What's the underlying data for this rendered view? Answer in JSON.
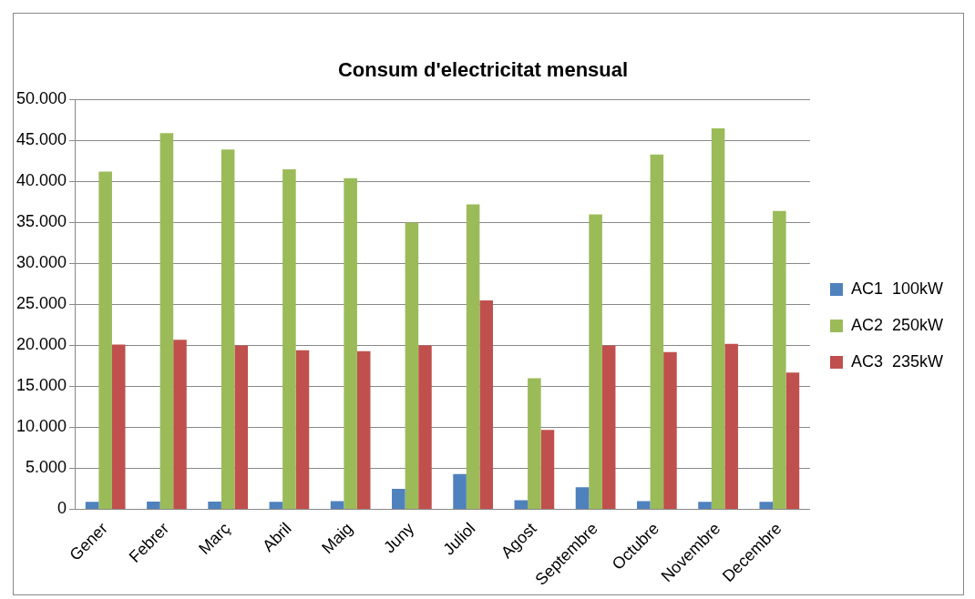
{
  "chart_data": {
    "type": "bar",
    "title": "Consum d'electricitat mensual",
    "categories": [
      "Gener",
      "Febrer",
      "Març",
      "Abril",
      "Maig",
      "Juny",
      "Juliol",
      "Agost",
      "Septembre",
      "Octubre",
      "Novembre",
      "Decembre"
    ],
    "series": [
      {
        "name": "AC1  100kW",
        "color": "#4f81bd",
        "values": [
          900,
          950,
          950,
          900,
          1000,
          2500,
          4300,
          1100,
          2700,
          1000,
          900,
          900
        ]
      },
      {
        "name": "AC2  250kW",
        "color": "#9bbb59",
        "values": [
          41200,
          45900,
          43900,
          41500,
          40400,
          35000,
          37200,
          16000,
          36000,
          43300,
          46500,
          36400
        ]
      },
      {
        "name": "AC3  235kW",
        "color": "#c0504d",
        "values": [
          20100,
          20700,
          20000,
          19400,
          19300,
          20000,
          25500,
          9700,
          20000,
          19200,
          20200,
          16700
        ]
      }
    ],
    "ylim": [
      0,
      50000
    ],
    "yticks": [
      {
        "value": 0,
        "label": "0"
      },
      {
        "value": 5000,
        "label": "5.000"
      },
      {
        "value": 10000,
        "label": "10.000"
      },
      {
        "value": 15000,
        "label": "15.000"
      },
      {
        "value": 20000,
        "label": "20.000"
      },
      {
        "value": 25000,
        "label": "25.000"
      },
      {
        "value": 30000,
        "label": "30.000"
      },
      {
        "value": 35000,
        "label": "35.000"
      },
      {
        "value": 40000,
        "label": "40.000"
      },
      {
        "value": 45000,
        "label": "45.000"
      },
      {
        "value": 50000,
        "label": "50.000"
      }
    ],
    "grid": "y",
    "legend": "right"
  }
}
